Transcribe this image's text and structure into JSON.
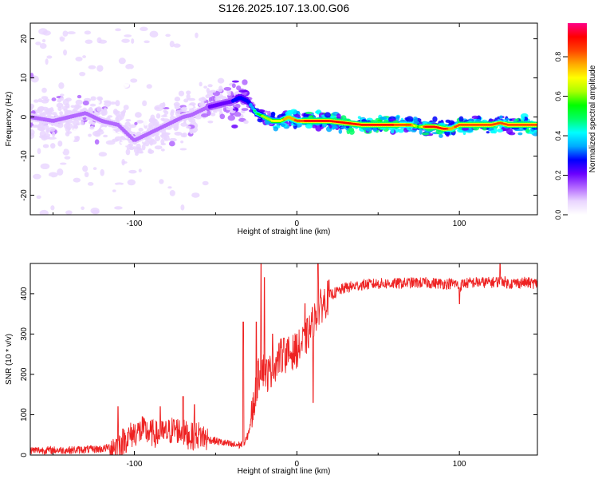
{
  "title": "S126.2025.107.13.00.G06",
  "chart_data": [
    {
      "type": "heatmap",
      "xlabel": "Height of straight line (km)",
      "ylabel": "Frequency (Hz)",
      "xlim": [
        -164,
        148
      ],
      "ylim": [
        -25,
        24
      ],
      "x_ticks": [
        -100,
        0,
        100
      ],
      "y_ticks": [
        -20,
        -10,
        0,
        10,
        20
      ],
      "colorbar": {
        "label": "Normalized spectral amplitude",
        "range": [
          0,
          0.97
        ],
        "ticks": [
          0.0,
          0.2,
          0.4,
          0.6,
          0.8
        ],
        "colors": [
          "#ffffff",
          "#e9d5ff",
          "#b266ff",
          "#6a00ff",
          "#0000ff",
          "#00aaff",
          "#00ffff",
          "#00ff66",
          "#00ff00",
          "#aaff00",
          "#ffff00",
          "#ffaa00",
          "#ff4400",
          "#ff0000",
          "#ff0088"
        ]
      },
      "ridge": {
        "x": [
          -164,
          -150,
          -140,
          -130,
          -120,
          -110,
          -100,
          -95,
          -90,
          -85,
          -80,
          -75,
          -70,
          -65,
          -60,
          -55,
          -50,
          -45,
          -40,
          -35,
          -30,
          -25,
          -20,
          -15,
          -10,
          -5,
          0,
          10,
          20,
          30,
          40,
          50,
          60,
          70,
          75,
          80,
          85,
          90,
          95,
          100,
          110,
          120,
          125,
          130,
          140,
          148
        ],
        "y": [
          0,
          -1,
          0,
          1,
          -1,
          -2,
          -6,
          -5,
          -4,
          -3,
          -2,
          -1,
          0,
          0.5,
          1.5,
          2.5,
          3,
          3.5,
          4,
          5,
          4,
          1,
          0,
          -1,
          -1,
          0,
          -1,
          -1,
          -1,
          -1.5,
          -2,
          -2,
          -2,
          -2,
          -2.5,
          -2.5,
          -2.5,
          -3,
          -3,
          -2,
          -2,
          -2,
          -1.5,
          -2,
          -2,
          -2
        ],
        "amplitude": [
          0.25,
          0.25,
          0.25,
          0.25,
          0.25,
          0.2,
          0.25,
          0.2,
          0.2,
          0.25,
          0.25,
          0.25,
          0.25,
          0.25,
          0.25,
          0.25,
          0.3,
          0.3,
          0.35,
          0.4,
          0.4,
          0.55,
          0.65,
          0.7,
          0.75,
          0.8,
          0.85,
          0.95,
          0.95,
          0.9,
          0.95,
          0.95,
          0.9,
          0.85,
          0.6,
          0.95,
          0.95,
          0.95,
          0.8,
          0.9,
          0.9,
          0.9,
          0.85,
          0.9,
          0.9,
          0.9
        ]
      }
    },
    {
      "type": "line",
      "xlabel": "Height of straight line (km)",
      "ylabel": "SNR (10 * v/v)",
      "xlim": [
        -164,
        148
      ],
      "ylim": [
        0,
        475
      ],
      "x_ticks": [
        -100,
        0,
        100
      ],
      "y_ticks": [
        0,
        100,
        200,
        300,
        400
      ],
      "color": "#ee2222",
      "envelope": {
        "x": [
          -164,
          -140,
          -120,
          -110,
          -105,
          -100,
          -95,
          -90,
          -85,
          -80,
          -75,
          -70,
          -65,
          -60,
          -55,
          -50,
          -45,
          -40,
          -35,
          -32,
          -30,
          -28,
          -26,
          -24,
          -22,
          -20,
          -18,
          -15,
          -12,
          -10,
          -5,
          0,
          5,
          8,
          10,
          13,
          15,
          18,
          20,
          25,
          30,
          40,
          50,
          60,
          70,
          80,
          90,
          98,
          100,
          102,
          110,
          120,
          125,
          127,
          130,
          140,
          148
        ],
        "y": [
          12,
          12,
          15,
          25,
          40,
          55,
          60,
          55,
          50,
          55,
          65,
          55,
          45,
          50,
          40,
          35,
          30,
          25,
          25,
          30,
          50,
          90,
          140,
          190,
          220,
          210,
          200,
          215,
          235,
          245,
          250,
          260,
          285,
          310,
          330,
          355,
          370,
          385,
          395,
          405,
          415,
          422,
          425,
          425,
          427,
          427,
          425,
          425,
          415,
          425,
          428,
          428,
          430,
          432,
          425,
          428,
          425
        ]
      },
      "spikes": [
        {
          "x": -110,
          "y": 120
        },
        {
          "x": -95,
          "y": 95
        },
        {
          "x": -84,
          "y": 120
        },
        {
          "x": -70,
          "y": 145
        },
        {
          "x": -63,
          "y": 125
        },
        {
          "x": -33,
          "y": 330
        },
        {
          "x": -25,
          "y": 330
        },
        {
          "x": -22,
          "y": 475
        },
        {
          "x": -20,
          "y": 440
        },
        {
          "x": -15,
          "y": 300
        },
        {
          "x": -8,
          "y": 290
        },
        {
          "x": 0,
          "y": 300
        },
        {
          "x": 5,
          "y": 375
        },
        {
          "x": 10,
          "y": 440
        },
        {
          "x": 13,
          "y": 475
        },
        {
          "x": 15,
          "y": 390
        },
        {
          "x": 125,
          "y": 475
        }
      ],
      "dips": [
        {
          "x": 10,
          "y": 130
        },
        {
          "x": 100,
          "y": 375
        }
      ]
    }
  ]
}
